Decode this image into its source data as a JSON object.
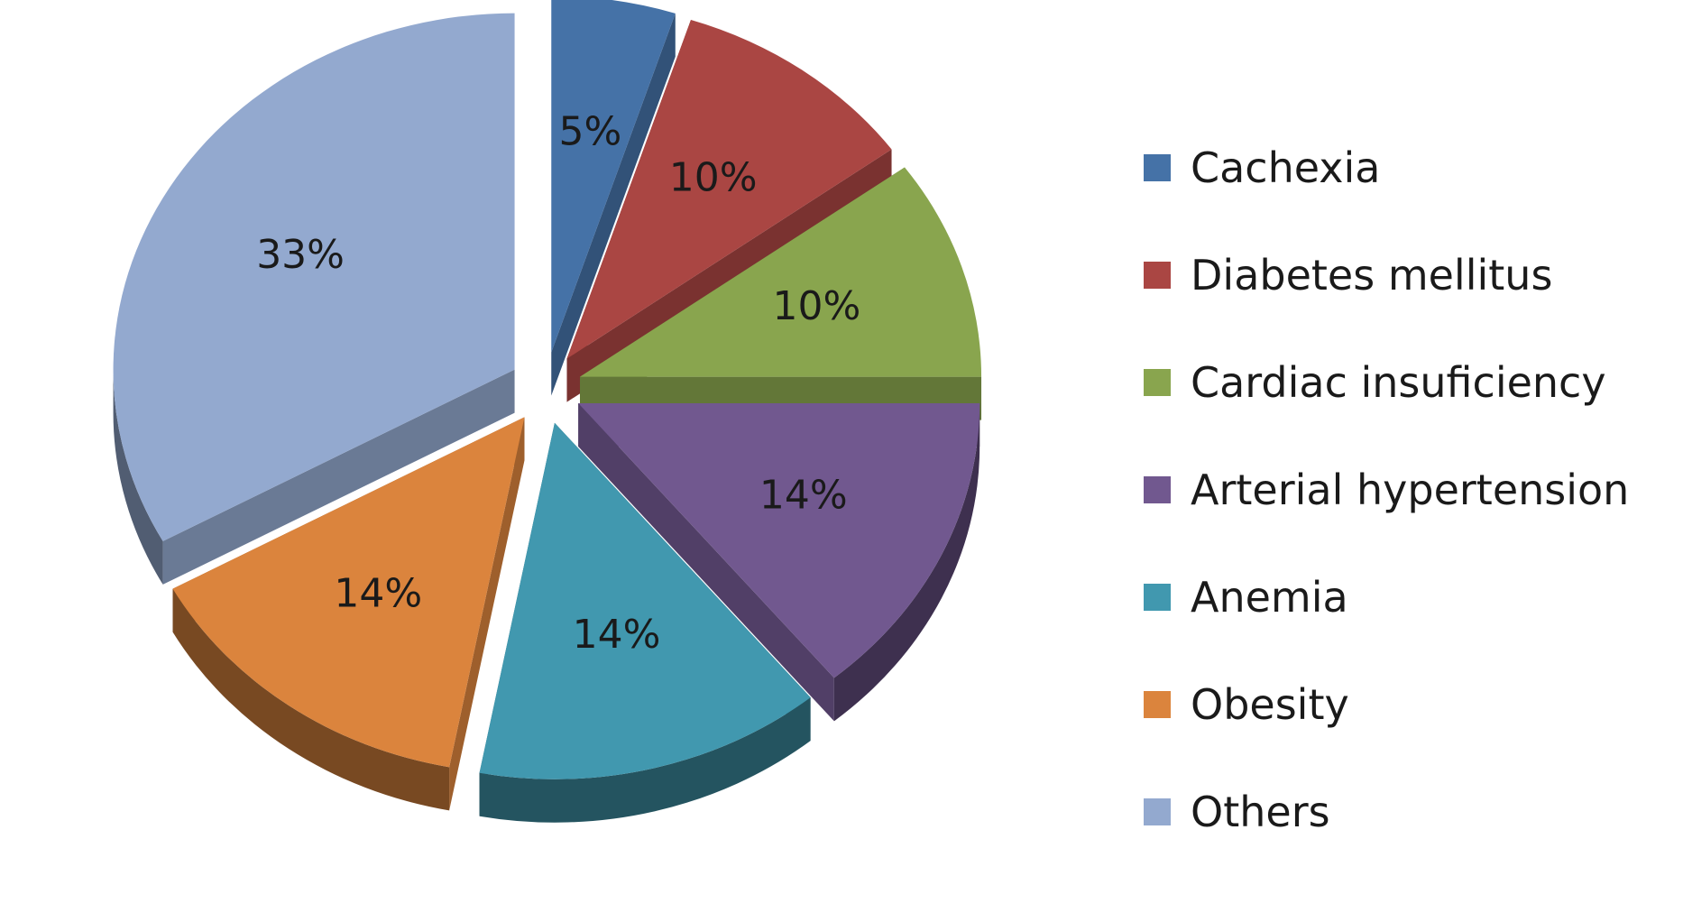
{
  "chart_data": {
    "type": "pie",
    "style": "3d-exploded",
    "series": [
      {
        "label": "Cachexia",
        "value": 5,
        "data_label": "5%",
        "color": "#4572A7"
      },
      {
        "label": "Diabetes mellitus",
        "value": 10,
        "data_label": "10%",
        "color": "#AA4643"
      },
      {
        "label": "Cardiac insuficiency",
        "value": 10,
        "data_label": "10%",
        "color": "#89A54E"
      },
      {
        "label": "Arterial hypertension",
        "value": 14,
        "data_label": "14%",
        "color": "#71588F"
      },
      {
        "label": "Anemia",
        "value": 14,
        "data_label": "14%",
        "color": "#4198AF"
      },
      {
        "label": "Obesity",
        "value": 14,
        "data_label": "14%",
        "color": "#DB843D"
      },
      {
        "label": "Others",
        "value": 33,
        "data_label": "33%",
        "color": "#93A9CF"
      }
    ],
    "legend_position": "right"
  }
}
